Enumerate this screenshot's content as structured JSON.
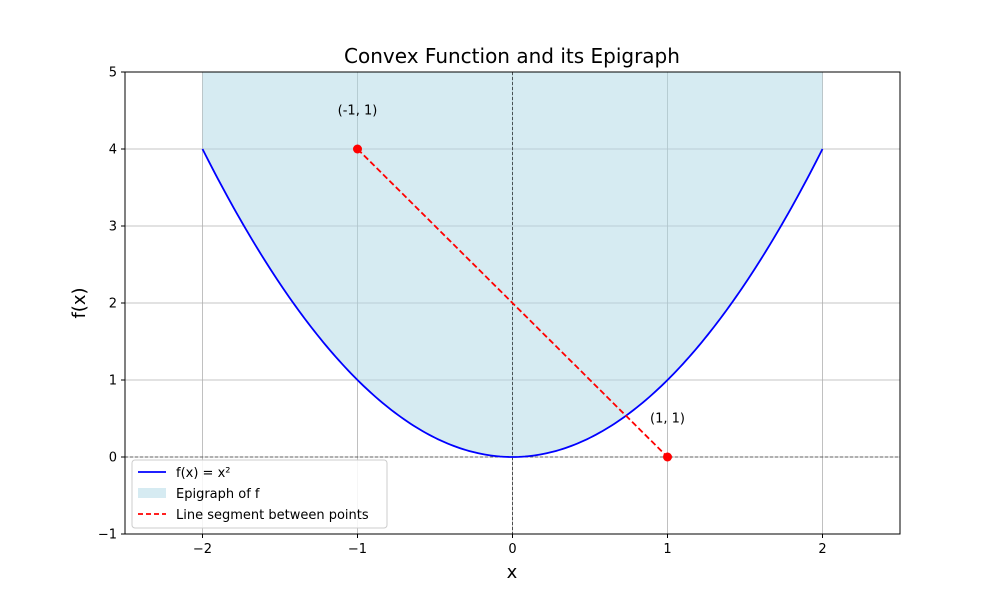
{
  "chart_data": {
    "type": "line",
    "title": "Convex Function and its Epigraph",
    "xlabel": "x",
    "ylabel": "f(x)",
    "xlim": [
      -2.5,
      2.5
    ],
    "ylim": [
      -1,
      5
    ],
    "xticks": [
      -2,
      -1,
      0,
      1,
      2
    ],
    "yticks": [
      -1,
      0,
      1,
      2,
      3,
      4,
      5
    ],
    "xtick_labels": [
      "−2",
      "−1",
      "0",
      "1",
      "2"
    ],
    "ytick_labels": [
      "−1",
      "0",
      "1",
      "2",
      "3",
      "4",
      "5"
    ],
    "grid": true,
    "legend_position": "lower-left",
    "function": {
      "name": "f(x) = x²",
      "color": "#0000ff",
      "x_range": [
        -2,
        2
      ],
      "x": [
        -2,
        -1.5,
        -1,
        -0.5,
        0,
        0.5,
        1,
        1.5,
        2
      ],
      "y": [
        4,
        2.25,
        1,
        0.25,
        0,
        0.25,
        1,
        2.25,
        4
      ]
    },
    "epigraph": {
      "name": "Epigraph of f",
      "color": "#add8e6",
      "x_range": [
        -2,
        2
      ],
      "upper": 5
    },
    "segment": {
      "name": "Line segment between points",
      "color": "#ff0000",
      "points": [
        {
          "x": -1,
          "y": 4
        },
        {
          "x": 1,
          "y": 0
        }
      ]
    },
    "annotations": [
      {
        "text": "(-1, 1)",
        "x": -1,
        "y": 4.5
      },
      {
        "text": "(1, 1)",
        "x": 1,
        "y": 0.5
      }
    ],
    "reference_lines": {
      "x0": 0,
      "y0": 0
    }
  }
}
